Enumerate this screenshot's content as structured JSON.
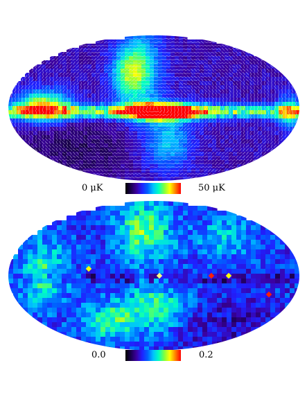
{
  "panels": [
    {
      "scale_min": "0  μK",
      "scale_max": "50  μK",
      "colormap": [
        "#000000",
        "#1a0050",
        "#3c00a0",
        "#2020ff",
        "#0060ff",
        "#00c0ff",
        "#00ffc0",
        "#80ff40",
        "#ffff00",
        "#ff8000",
        "#ff0000"
      ]
    },
    {
      "scale_min": "0.0",
      "scale_max": "0.2",
      "colormap": [
        "#000000",
        "#1a0050",
        "#3c00a0",
        "#2020ff",
        "#0060ff",
        "#00c0ff",
        "#00ffc0",
        "#80ff40",
        "#ffff00",
        "#ff8000",
        "#ff0000"
      ]
    }
  ],
  "colors": {
    "background": "#ffffff",
    "map_base_top": "#3a1a78",
    "map_base_bottom": "#3a1a78",
    "vector_lines": "#e8e8ff"
  }
}
